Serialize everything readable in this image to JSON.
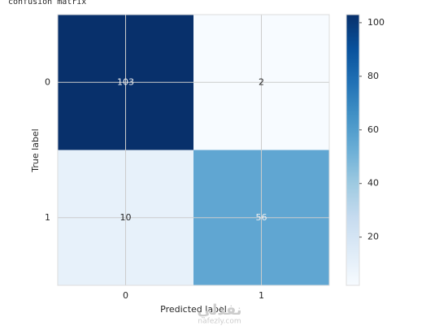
{
  "chart_data": {
    "type": "heatmap",
    "title": "confusion matrix",
    "xlabel": "Predicted label",
    "ylabel": "True label",
    "xcategories": [
      "0",
      "1"
    ],
    "ycategories": [
      "0",
      "1"
    ],
    "values": [
      [
        103,
        2
      ],
      [
        10,
        56
      ]
    ],
    "colormap": "Blues",
    "clim": [
      2,
      103
    ],
    "cticks": [
      20,
      40,
      60,
      80,
      100
    ],
    "grid": true,
    "watermark": [
      "نفذلي",
      "nafezly.com"
    ]
  }
}
